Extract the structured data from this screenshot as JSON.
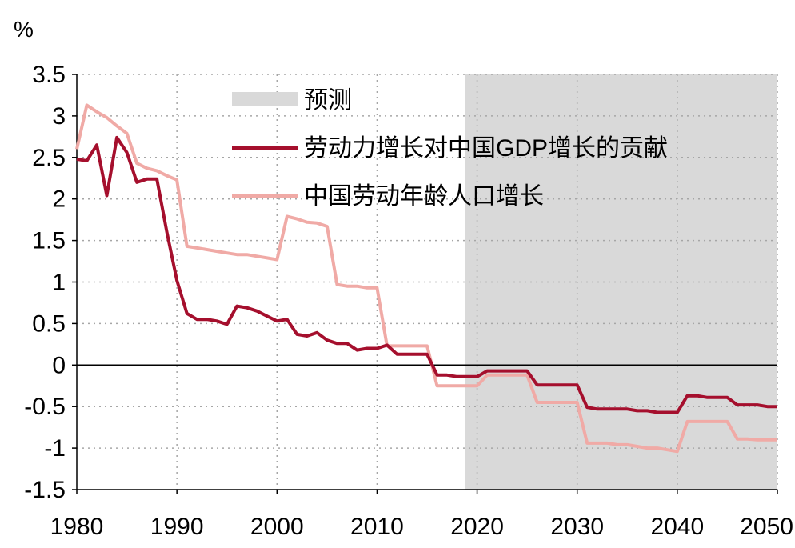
{
  "chart_data": {
    "type": "line",
    "unit_label": "%",
    "xlim": [
      1980,
      2050
    ],
    "ylim": [
      -1.5,
      3.5
    ],
    "y_ticks": [
      3.5,
      3,
      2.5,
      2,
      1.5,
      1,
      0.5,
      0,
      -0.5,
      -1,
      -1.5
    ],
    "y_tick_labels": [
      "3.5",
      "3",
      "2.5",
      "2",
      "1.5",
      "1",
      "0.5",
      "0",
      "-0.5",
      "-1",
      "-1.5"
    ],
    "x_ticks": [
      1980,
      1990,
      2000,
      2010,
      2020,
      2030,
      2040,
      2050
    ],
    "x_tick_labels": [
      "1980",
      "1990",
      "2000",
      "2010",
      "2020",
      "2030",
      "2040",
      "2050"
    ],
    "grid": "dotted",
    "forecast_region": {
      "label": "预测",
      "x_start": 2018.8,
      "x_end": 2050.5,
      "color": "#d9d9d9"
    },
    "legend_position": "top-center",
    "series": [
      {
        "name": "劳动力增长对中国GDP增长的贡献",
        "color": "#a50f2d",
        "x": [
          1980,
          1981,
          1982,
          1983,
          1984,
          1985,
          1986,
          1987,
          1988,
          1989,
          1990,
          1991,
          1992,
          1993,
          1994,
          1995,
          1996,
          1997,
          1998,
          1999,
          2000,
          2001,
          2002,
          2003,
          2004,
          2005,
          2006,
          2007,
          2008,
          2009,
          2010,
          2011,
          2012,
          2013,
          2014,
          2015,
          2016,
          2017,
          2018,
          2019,
          2020,
          2021,
          2022,
          2023,
          2024,
          2025,
          2026,
          2027,
          2028,
          2029,
          2030,
          2031,
          2032,
          2033,
          2034,
          2035,
          2036,
          2037,
          2038,
          2039,
          2040,
          2041,
          2042,
          2043,
          2044,
          2045,
          2046,
          2047,
          2048,
          2049,
          2050
        ],
        "values": [
          2.48,
          2.46,
          2.65,
          2.04,
          2.74,
          2.56,
          2.2,
          2.24,
          2.24,
          1.6,
          1.02,
          0.62,
          0.55,
          0.55,
          0.53,
          0.49,
          0.71,
          0.69,
          0.65,
          0.59,
          0.53,
          0.55,
          0.37,
          0.35,
          0.39,
          0.3,
          0.26,
          0.26,
          0.18,
          0.2,
          0.2,
          0.24,
          0.13,
          0.13,
          0.13,
          0.13,
          -0.12,
          -0.12,
          -0.14,
          -0.14,
          -0.14,
          -0.07,
          -0.07,
          -0.07,
          -0.07,
          -0.07,
          -0.24,
          -0.24,
          -0.24,
          -0.24,
          -0.24,
          -0.51,
          -0.53,
          -0.53,
          -0.53,
          -0.53,
          -0.55,
          -0.55,
          -0.57,
          -0.57,
          -0.57,
          -0.37,
          -0.37,
          -0.39,
          -0.39,
          -0.39,
          -0.48,
          -0.48,
          -0.48,
          -0.5,
          -0.5
        ]
      },
      {
        "name": "中国劳动年龄人口增长",
        "color": "#f0aaa6",
        "x": [
          1980,
          1981,
          1982,
          1983,
          1984,
          1985,
          1986,
          1987,
          1988,
          1989,
          1990,
          1991,
          1992,
          1993,
          1994,
          1995,
          1996,
          1997,
          1998,
          1999,
          2000,
          2001,
          2002,
          2003,
          2004,
          2005,
          2006,
          2007,
          2008,
          2009,
          2010,
          2011,
          2012,
          2013,
          2014,
          2015,
          2016,
          2017,
          2018,
          2019,
          2020,
          2021,
          2022,
          2023,
          2024,
          2025,
          2026,
          2027,
          2028,
          2029,
          2030,
          2031,
          2032,
          2033,
          2034,
          2035,
          2036,
          2037,
          2038,
          2039,
          2040,
          2041,
          2042,
          2043,
          2044,
          2045,
          2046,
          2047,
          2048,
          2049,
          2050
        ],
        "values": [
          2.6,
          3.13,
          3.05,
          2.98,
          2.88,
          2.79,
          2.43,
          2.37,
          2.34,
          2.28,
          2.23,
          1.43,
          1.41,
          1.39,
          1.37,
          1.35,
          1.33,
          1.33,
          1.31,
          1.29,
          1.27,
          1.79,
          1.76,
          1.72,
          1.71,
          1.67,
          0.97,
          0.95,
          0.95,
          0.93,
          0.93,
          0.23,
          0.23,
          0.23,
          0.23,
          0.23,
          -0.25,
          -0.25,
          -0.25,
          -0.25,
          -0.25,
          -0.12,
          -0.12,
          -0.12,
          -0.12,
          -0.12,
          -0.45,
          -0.45,
          -0.45,
          -0.45,
          -0.45,
          -0.94,
          -0.94,
          -0.94,
          -0.96,
          -0.96,
          -0.98,
          -1.0,
          -1.0,
          -1.02,
          -1.04,
          -0.68,
          -0.68,
          -0.68,
          -0.68,
          -0.68,
          -0.89,
          -0.89,
          -0.9,
          -0.9,
          -0.9
        ]
      }
    ]
  }
}
